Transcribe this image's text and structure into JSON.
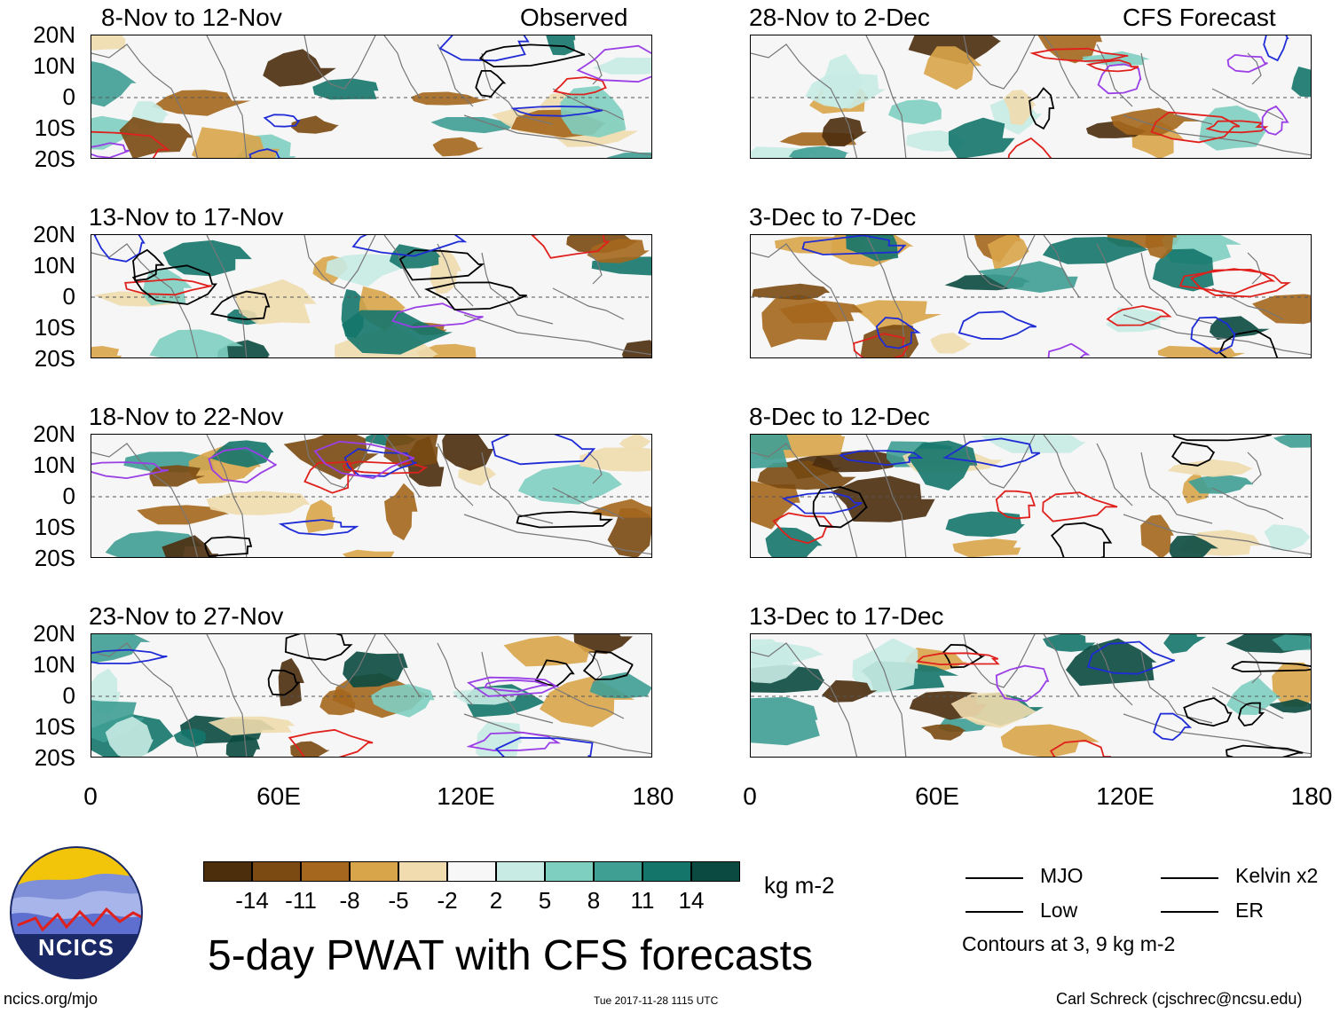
{
  "colors": {
    "dry_deep": "#5a3a16",
    "dry_mid": "#9c6116",
    "wet_mid": "#3f9f93",
    "wet_deep": "#0a4a40",
    "mjo": "#000000",
    "kelvin": "#1f2cd6",
    "low": "#9a3fe6",
    "er": "#e0201c",
    "coast": "#777777"
  },
  "header": {
    "left_label": "Observed",
    "right_label": "CFS Forecast"
  },
  "panels": {
    "left": [
      "8-Nov to 12-Nov",
      "13-Nov to 17-Nov",
      "18-Nov to 22-Nov",
      "23-Nov to 27-Nov"
    ],
    "right": [
      "28-Nov to 2-Dec",
      "3-Dec to 7-Dec",
      "8-Dec to 12-Dec",
      "13-Dec to 17-Dec"
    ]
  },
  "axes": {
    "y_ticks": [
      "20N",
      "10N",
      "0",
      "10S",
      "20S"
    ],
    "x_ticks": [
      "0",
      "60E",
      "120E",
      "180"
    ]
  },
  "colorbar": {
    "colors": [
      "#4c2e0d",
      "#7a4a12",
      "#a5671d",
      "#d9a54a",
      "#f0dcae",
      "#f7f7f7",
      "#c8ebe4",
      "#7fcfc1",
      "#3f9f93",
      "#14766b",
      "#0a4a40"
    ],
    "labels": [
      "-14",
      "-11",
      "-8",
      "-5",
      "-2",
      "2",
      "5",
      "8",
      "11",
      "14"
    ],
    "units": "kg m-2"
  },
  "title": "5-day PWAT with CFS forecasts",
  "logo": {
    "text": "NCICS"
  },
  "legend": {
    "items": [
      {
        "label": "MJO",
        "color": "#000000"
      },
      {
        "label": "Kelvin x2",
        "color": "#1f2cd6"
      },
      {
        "label": "Low",
        "color": "#9a3fe6"
      },
      {
        "label": "ER",
        "color": "#e0201c"
      }
    ],
    "note": "Contours at 3, 9 kg m-2"
  },
  "footer": {
    "url": "ncics.org/mjo",
    "timestamp": "Tue 2017-11-28 1115 UTC",
    "author": "Carl Schreck (cjschrec@ncsu.edu)"
  }
}
